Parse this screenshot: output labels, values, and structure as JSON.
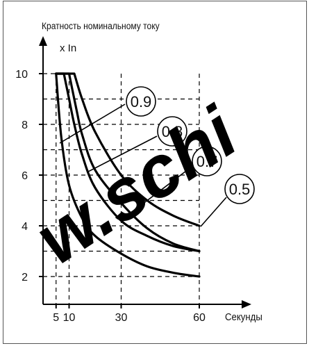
{
  "chart_data": {
    "type": "line",
    "title": "Кратность номинальному току",
    "ylabel": "x In",
    "xlabel": "Секунды",
    "xlim": [
      0,
      75
    ],
    "ylim": [
      1,
      12
    ],
    "x_ticks": [
      5,
      10,
      30,
      60
    ],
    "y_ticks": [
      2,
      4,
      6,
      8,
      10
    ],
    "x_tick_labels": [
      "5",
      "10",
      "30",
      "60"
    ],
    "y_tick_labels": [
      "2",
      "4",
      "6",
      "8",
      "10"
    ],
    "grid": "dashed",
    "series": [
      {
        "name": "0.9",
        "x": [
          5,
          7,
          10,
          15,
          20,
          30,
          40,
          50,
          60
        ],
        "y": [
          10,
          7.5,
          5.6,
          4.3,
          3.6,
          2.9,
          2.4,
          2.15,
          2.0
        ]
      },
      {
        "name": "0.8",
        "x": [
          5,
          8,
          10,
          12,
          15,
          20,
          30,
          40,
          50,
          60
        ],
        "y": [
          10,
          10,
          9,
          8,
          6.8,
          5.5,
          4.2,
          3.6,
          3.2,
          3.0
        ]
      },
      {
        "name": "0.7",
        "x": [
          5,
          10,
          13,
          15,
          20,
          30,
          40,
          50,
          60
        ],
        "y": [
          10,
          10,
          8.5,
          7.6,
          6.2,
          4.9,
          3.9,
          3.3,
          3.0
        ]
      },
      {
        "name": "0.5",
        "x": [
          5,
          12,
          15,
          20,
          30,
          40,
          50,
          60
        ],
        "y": [
          10,
          10,
          9.0,
          7.7,
          6.0,
          5.0,
          4.4,
          4.0
        ]
      }
    ],
    "annotations": [
      "0.9",
      "0.8",
      "0.7",
      "0.5"
    ],
    "watermark": "w.schi"
  }
}
